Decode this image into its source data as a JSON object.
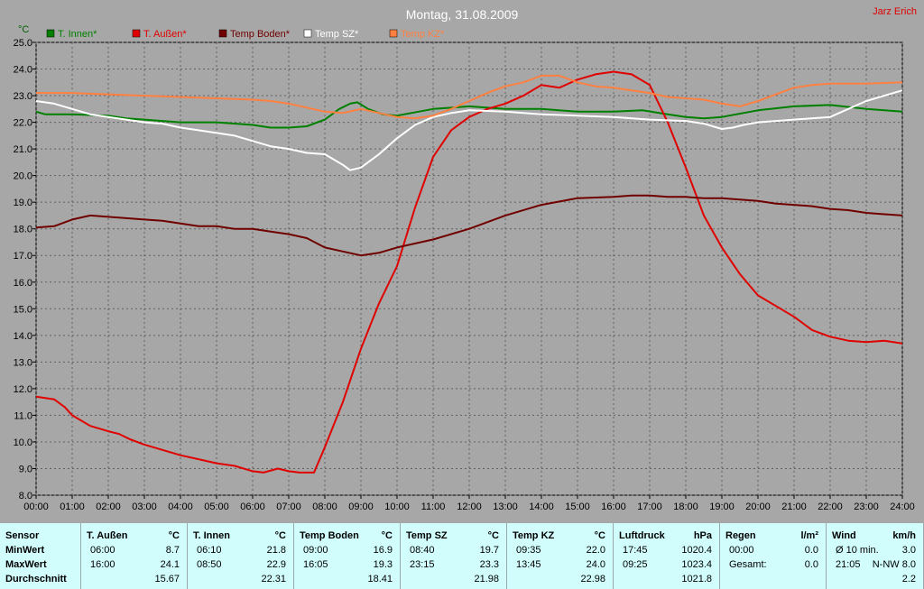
{
  "chart_data": {
    "type": "line",
    "title": "Montag, 31.08.2009",
    "author": "Jarz Erich",
    "ylabel": "°C",
    "ylim": [
      8.0,
      25.0
    ],
    "yticks": [
      "8.0",
      "9.0",
      "10.0",
      "11.0",
      "12.0",
      "13.0",
      "14.0",
      "15.0",
      "16.0",
      "17.0",
      "18.0",
      "19.0",
      "20.0",
      "21.0",
      "22.0",
      "23.0",
      "24.0",
      "25.0"
    ],
    "xticks": [
      "00:00",
      "01:00",
      "02:00",
      "03:00",
      "04:00",
      "05:00",
      "06:00",
      "07:00",
      "08:00",
      "09:00",
      "10:00",
      "11:00",
      "12:00",
      "13:00",
      "14:00",
      "15:00",
      "16:00",
      "17:00",
      "18:00",
      "19:00",
      "20:00",
      "21:00",
      "22:00",
      "23:00",
      "24:00"
    ],
    "xlim": [
      0,
      24
    ],
    "grid": true,
    "legend_position": "top-left",
    "series": [
      {
        "name": "T. Innen*",
        "color": "#008000",
        "x": [
          0,
          0.25,
          1,
          2,
          2.5,
          3,
          4,
          5,
          6,
          6.5,
          7,
          7.5,
          8,
          8.4,
          8.7,
          8.9,
          9.2,
          9.6,
          10,
          11,
          12,
          13,
          14,
          15,
          16,
          16.8,
          17.5,
          18,
          18.5,
          19,
          20,
          21,
          22,
          23,
          24
        ],
        "y": [
          22.4,
          22.3,
          22.3,
          22.25,
          22.15,
          22.1,
          22.0,
          22.0,
          21.9,
          21.8,
          21.8,
          21.85,
          22.1,
          22.5,
          22.7,
          22.75,
          22.5,
          22.3,
          22.25,
          22.5,
          22.6,
          22.5,
          22.5,
          22.4,
          22.4,
          22.45,
          22.3,
          22.2,
          22.15,
          22.2,
          22.45,
          22.6,
          22.65,
          22.5,
          22.4
        ]
      },
      {
        "name": "T. Außen*",
        "color": "#e00000",
        "x": [
          0,
          0.5,
          0.8,
          1,
          1.5,
          2,
          2.3,
          2.6,
          3,
          3.5,
          4,
          4.5,
          5,
          5.5,
          6,
          6.3,
          6.7,
          7,
          7.3,
          7.7,
          8,
          8.5,
          9,
          9.5,
          10,
          10.5,
          11,
          11.5,
          12,
          12.5,
          13,
          13.5,
          14,
          14.5,
          15,
          15.5,
          16,
          16.5,
          17,
          17.5,
          18,
          18.5,
          19,
          19.5,
          20,
          20.5,
          21,
          21.5,
          22,
          22.5,
          23,
          23.5,
          24
        ],
        "y": [
          11.7,
          11.6,
          11.3,
          11.0,
          10.6,
          10.4,
          10.3,
          10.1,
          9.9,
          9.7,
          9.5,
          9.35,
          9.2,
          9.1,
          8.9,
          8.85,
          9.0,
          8.9,
          8.85,
          8.85,
          9.8,
          11.5,
          13.5,
          15.2,
          16.6,
          18.8,
          20.7,
          21.7,
          22.2,
          22.5,
          22.7,
          23.0,
          23.4,
          23.3,
          23.6,
          23.8,
          23.9,
          23.8,
          23.4,
          22.0,
          20.3,
          18.5,
          17.3,
          16.3,
          15.5,
          15.1,
          14.7,
          14.2,
          13.95,
          13.8,
          13.75,
          13.8,
          13.7
        ]
      },
      {
        "name": "Temp Boden*",
        "color": "#700000",
        "x": [
          0,
          0.5,
          1,
          1.5,
          2,
          2.5,
          3,
          3.5,
          4,
          4.5,
          5,
          5.5,
          6,
          6.5,
          7,
          7.5,
          8,
          8.5,
          9,
          9.5,
          10,
          11,
          12,
          13,
          14,
          15,
          16,
          16.5,
          17,
          17.5,
          18,
          18.5,
          19,
          19.5,
          20,
          20.5,
          21,
          21.5,
          22,
          22.5,
          23,
          23.5,
          24
        ],
        "y": [
          18.05,
          18.1,
          18.35,
          18.5,
          18.45,
          18.4,
          18.35,
          18.3,
          18.2,
          18.1,
          18.1,
          18.0,
          18.0,
          17.9,
          17.8,
          17.65,
          17.3,
          17.15,
          17.0,
          17.1,
          17.3,
          17.6,
          18.0,
          18.5,
          18.9,
          19.15,
          19.2,
          19.25,
          19.25,
          19.2,
          19.2,
          19.15,
          19.15,
          19.1,
          19.05,
          18.95,
          18.9,
          18.85,
          18.75,
          18.7,
          18.6,
          18.55,
          18.5
        ]
      },
      {
        "name": "Temp SZ*",
        "color": "#ffffff",
        "x": [
          0,
          0.5,
          1,
          1.5,
          2,
          2.5,
          3,
          3.5,
          4,
          4.5,
          5,
          5.5,
          6,
          6.5,
          7,
          7.5,
          8,
          8.5,
          8.7,
          9,
          9.5,
          10,
          10.5,
          11,
          11.5,
          12,
          13,
          14,
          15,
          16,
          17,
          18,
          18.5,
          19,
          19.3,
          19.6,
          20,
          21,
          22,
          22.5,
          23,
          23.5,
          24
        ],
        "y": [
          22.8,
          22.7,
          22.5,
          22.3,
          22.2,
          22.1,
          22.0,
          21.95,
          21.8,
          21.7,
          21.6,
          21.5,
          21.3,
          21.1,
          21.0,
          20.85,
          20.8,
          20.4,
          20.2,
          20.3,
          20.8,
          21.4,
          21.9,
          22.2,
          22.35,
          22.45,
          22.4,
          22.3,
          22.25,
          22.2,
          22.1,
          22.05,
          21.95,
          21.75,
          21.8,
          21.9,
          22.0,
          22.1,
          22.2,
          22.5,
          22.8,
          23.0,
          23.2
        ]
      },
      {
        "name": "Temp KZ*",
        "color": "#ff8040",
        "x": [
          0,
          1,
          2,
          3,
          4,
          5,
          6,
          6.5,
          7,
          7.5,
          8,
          8.5,
          9,
          9.5,
          10,
          10.5,
          11,
          11.5,
          12,
          12.5,
          13,
          13.5,
          14,
          14.5,
          15,
          15.5,
          16,
          16.5,
          17,
          17.5,
          18,
          18.5,
          19,
          19.5,
          20,
          20.5,
          21,
          21.5,
          22,
          23,
          24
        ],
        "y": [
          23.1,
          23.1,
          23.05,
          23.0,
          22.95,
          22.9,
          22.85,
          22.8,
          22.7,
          22.55,
          22.4,
          22.35,
          22.5,
          22.35,
          22.2,
          22.15,
          22.25,
          22.5,
          22.8,
          23.1,
          23.35,
          23.5,
          23.75,
          23.75,
          23.5,
          23.35,
          23.3,
          23.2,
          23.1,
          22.95,
          22.9,
          22.85,
          22.7,
          22.6,
          22.8,
          23.05,
          23.3,
          23.4,
          23.45,
          23.45,
          23.5
        ]
      }
    ]
  },
  "stats": {
    "sensor": {
      "label": "Sensor",
      "rows": [
        "MinWert",
        "MaxWert",
        "Durchschnitt"
      ]
    },
    "columns": [
      {
        "name": "T. Außen",
        "unit": "°C",
        "min_time": "06:00",
        "min_val": "8.7",
        "max_time": "16:00",
        "max_val": "24.1",
        "avg": "15.67"
      },
      {
        "name": "T. Innen",
        "unit": "°C",
        "min_time": "06:10",
        "min_val": "21.8",
        "max_time": "08:50",
        "max_val": "22.9",
        "avg": "22.31"
      },
      {
        "name": "Temp Boden",
        "unit": "°C",
        "min_time": "09:00",
        "min_val": "16.9",
        "max_time": "16:05",
        "max_val": "19.3",
        "avg": "18.41"
      },
      {
        "name": "Temp SZ",
        "unit": "°C",
        "min_time": "08:40",
        "min_val": "19.7",
        "max_time": "23:15",
        "max_val": "23.3",
        "avg": "21.98"
      },
      {
        "name": "Temp KZ",
        "unit": "°C",
        "min_time": "09:35",
        "min_val": "22.0",
        "max_time": "13:45",
        "max_val": "24.0",
        "avg": "22.98"
      },
      {
        "name": "Luftdruck",
        "unit": "hPa",
        "min_time": "17:45",
        "min_val": "1020.4",
        "max_time": "09:25",
        "max_val": "1023.4",
        "avg": "1021.8"
      },
      {
        "name": "Regen",
        "unit": "l/m²",
        "min_time": "00:00",
        "min_val": "0.0",
        "max_time": "Gesamt:",
        "max_val": "0.0",
        "avg": ""
      },
      {
        "name": "Wind",
        "unit": "km/h",
        "min_time": "Ø 10 min.",
        "min_val": "3.0",
        "max_time": "21:05",
        "max_val": "N-NW 8.0",
        "avg": "2.2"
      }
    ]
  }
}
